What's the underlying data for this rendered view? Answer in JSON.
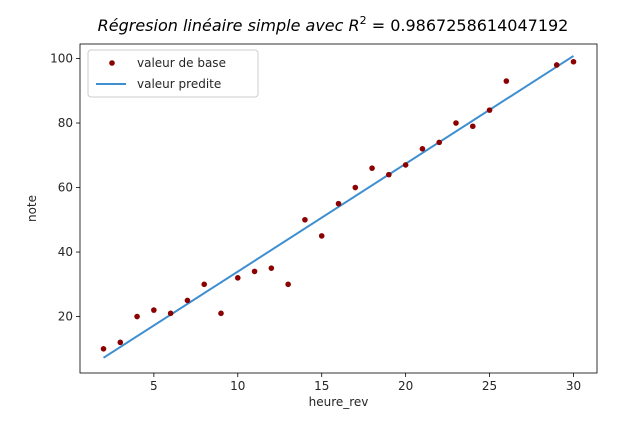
{
  "chart_data": {
    "type": "scatter",
    "title_prefix": "Régresion linéaire simple avec ",
    "title_symbol": "R",
    "title_exponent": "2",
    "title_value": " = 0.9867258614047192",
    "xlabel": "heure_rev",
    "ylabel": "note",
    "xlim": [
      0.6,
      31.4
    ],
    "ylim": [
      2.5,
      104.5
    ],
    "xticks": [
      5,
      10,
      15,
      20,
      25,
      30
    ],
    "yticks": [
      20,
      40,
      60,
      80,
      100
    ],
    "grid": false,
    "legend_position": "top-left",
    "series": [
      {
        "name": "valeur de base",
        "kind": "scatter",
        "color": "#8b0000",
        "x": [
          2,
          3,
          4,
          5,
          6,
          7,
          8,
          9,
          10,
          11,
          12,
          13,
          14,
          15,
          16,
          17,
          18,
          19,
          20,
          21,
          22,
          23,
          24,
          25,
          26,
          29,
          30
        ],
        "y": [
          10,
          12,
          20,
          22,
          21,
          25,
          30,
          21,
          32,
          34,
          35,
          30,
          50,
          45,
          55,
          60,
          66,
          64,
          67,
          72,
          74,
          80,
          79,
          84,
          93,
          98,
          99
        ]
      },
      {
        "name": "valeur predite",
        "kind": "line",
        "color": "#3d8fd1",
        "x": [
          2,
          30
        ],
        "y": [
          7.2,
          100.8
        ]
      }
    ]
  }
}
